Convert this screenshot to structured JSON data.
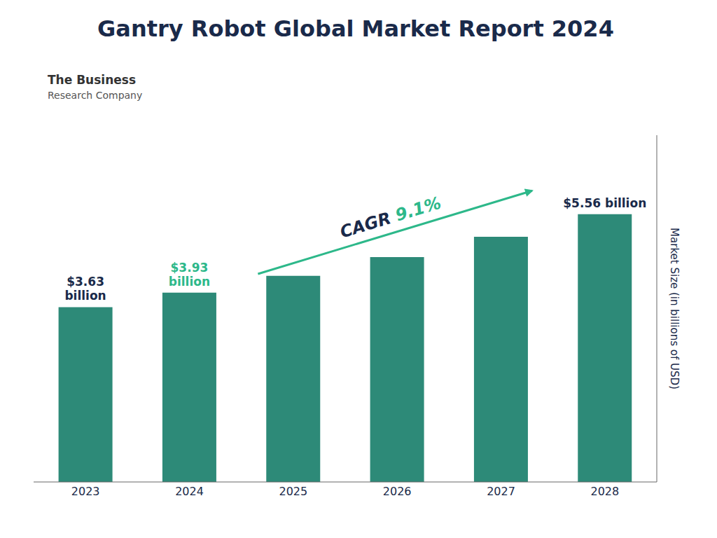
{
  "chart_data": {
    "type": "bar",
    "title": "Gantry Robot Global Market Report 2024",
    "categories": [
      "2023",
      "2024",
      "2025",
      "2026",
      "2027",
      "2028"
    ],
    "values": [
      3.63,
      3.93,
      4.28,
      4.67,
      5.09,
      5.56
    ],
    "color": "#2d8a78",
    "ylabel": "Market Size (in billions of USD)",
    "ylim": [
      0,
      7.2
    ],
    "yticks": [],
    "grid": false,
    "tick_labels": "x",
    "annotations": [
      {
        "text": "$3.63\nbillion",
        "x": "2023",
        "color": "#1a2a4a"
      },
      {
        "text": "$3.93\nbillion",
        "x": "2024",
        "color": "#2db88a"
      },
      {
        "text": "$5.56 billion",
        "x": "2028",
        "color": "#1a2a4a"
      },
      {
        "text": [
          "CAGR ",
          "9.1%"
        ],
        "colors": [
          "#1a2a4a",
          "#2db88a"
        ],
        "arrow": true
      },
      {
        "text": [
          "The Business",
          "Research Company"
        ],
        "colors": [
          "#333333",
          "#555555"
        ]
      }
    ]
  }
}
